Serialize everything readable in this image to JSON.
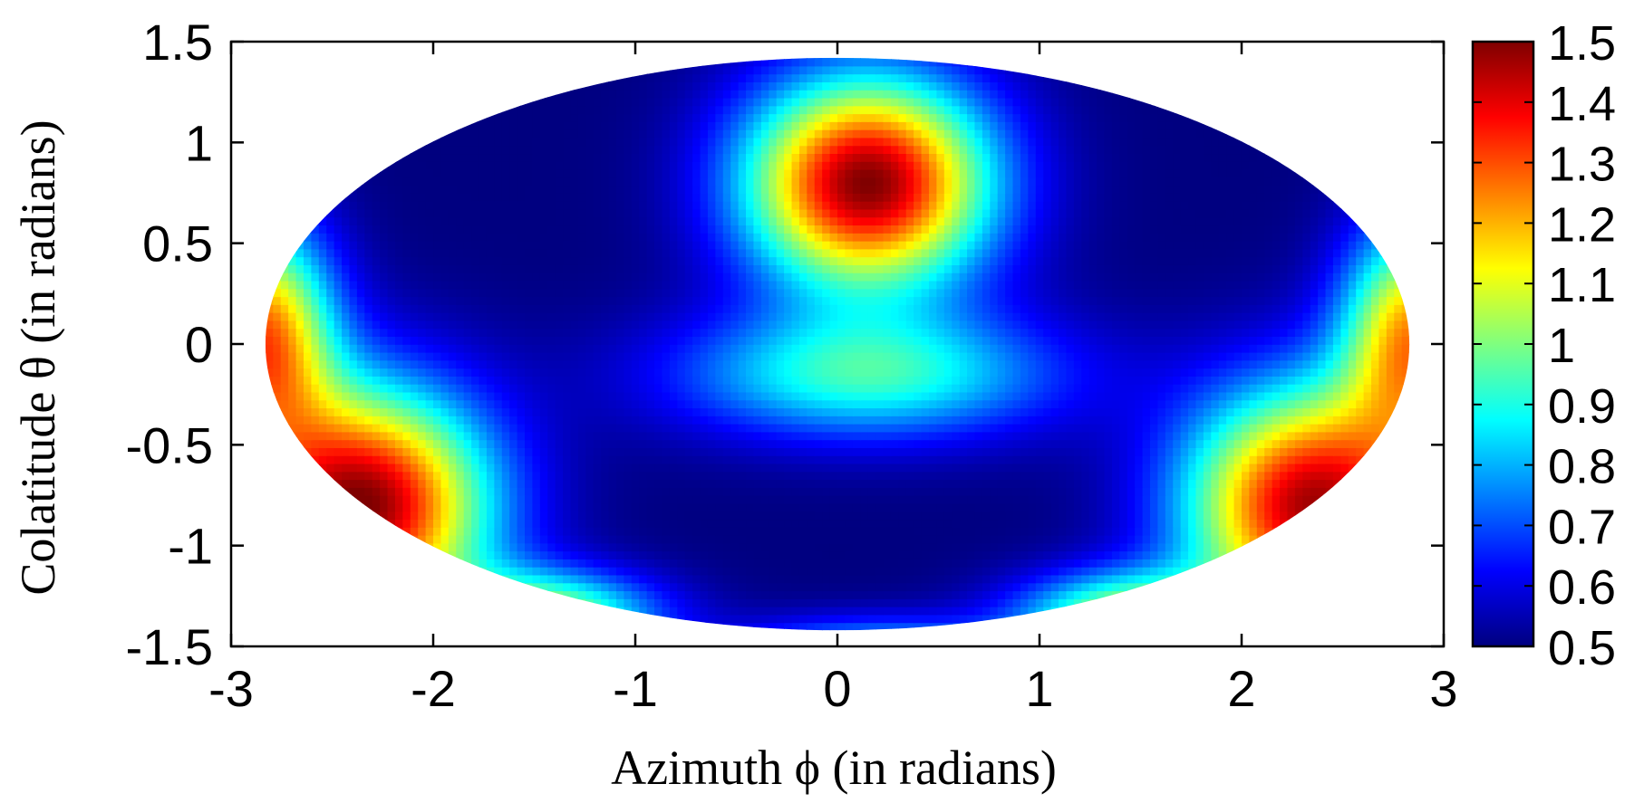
{
  "chart_data": {
    "type": "heatmap",
    "projection": "mollweide-like elliptical map",
    "title": "",
    "xlabel": "Azimuth ϕ (in radians)",
    "ylabel": "Colatitude θ (in radians)",
    "xlim": [
      -3,
      3
    ],
    "ylim": [
      -1.5,
      1.5
    ],
    "x_ticks": [
      "-3",
      "-2",
      "-1",
      "0",
      "1",
      "2",
      "3"
    ],
    "x_tick_values": [
      -3,
      -2,
      -1,
      0,
      1,
      2,
      3
    ],
    "y_ticks": [
      "1.5",
      "1",
      "0.5",
      "0",
      "-0.5",
      "-1",
      "-1.5"
    ],
    "y_tick_values": [
      1.5,
      1,
      0.5,
      0,
      -0.5,
      -1,
      -1.5
    ],
    "ellipse": {
      "x_half_width": 2.83,
      "y_half_height": 1.42,
      "center": [
        0,
        0
      ]
    },
    "colorbar": {
      "range": [
        0.5,
        1.5
      ],
      "ticks": [
        "1.5",
        "1.4",
        "1.3",
        "1.2",
        "1.1",
        "1",
        "0.9",
        "0.8",
        "0.7",
        "0.6",
        "0.5"
      ],
      "tick_values": [
        1.5,
        1.4,
        1.3,
        1.2,
        1.1,
        1.0,
        0.9,
        0.8,
        0.7,
        0.6,
        0.5
      ],
      "colormap": "jet",
      "colors": [
        "#00007f",
        "#0000ff",
        "#007fff",
        "#00ffff",
        "#7fff7f",
        "#ffff00",
        "#ff7f00",
        "#ff0000",
        "#7f0000"
      ]
    },
    "features": [
      {
        "description": "maximum",
        "x": 0.15,
        "y": 0.8,
        "value": 1.5
      },
      {
        "description": "maximum",
        "x": -2.35,
        "y": -0.8,
        "value": 1.5
      },
      {
        "description": "maximum",
        "x": 2.35,
        "y": -0.8,
        "value": 1.4
      }
    ],
    "grid": false,
    "legend": "colorbar right"
  }
}
